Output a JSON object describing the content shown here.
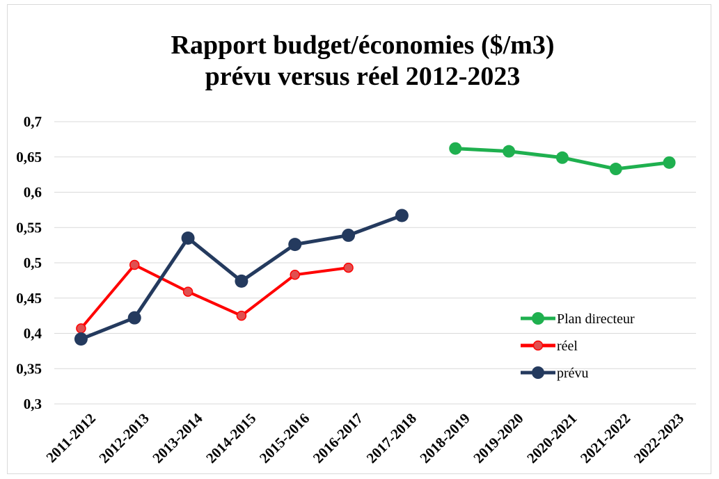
{
  "chart_data": {
    "type": "line",
    "title": [
      "Rapport budget/économies ($/m3)",
      "prévu versus réel 2012-2023"
    ],
    "xlabel": "",
    "ylabel": "",
    "categories": [
      "2011-2012",
      "2012-2013",
      "2013-2014",
      "2014-2015",
      "2015-2016",
      "2016-2017",
      "2017-2018",
      "2018-2019",
      "2019-2020",
      "2020-2021",
      "2021-2022",
      "2022-2023"
    ],
    "ylim": [
      0.3,
      0.7
    ],
    "yticks": [
      "0,3",
      "0,35",
      "0,4",
      "0,45",
      "0,5",
      "0,55",
      "0,6",
      "0,65",
      "0,7"
    ],
    "grid": true,
    "legend_position": "right",
    "series": [
      {
        "name": "Plan directeur",
        "color": "#1fb04f",
        "values": [
          null,
          null,
          null,
          null,
          null,
          null,
          null,
          0.662,
          0.658,
          0.649,
          0.633,
          0.642
        ]
      },
      {
        "name": "réel",
        "color": "#ff0000",
        "marker_color": "#e05050",
        "values": [
          0.407,
          0.497,
          0.459,
          0.425,
          0.483,
          0.493,
          null,
          null,
          null,
          null,
          null,
          null
        ]
      },
      {
        "name": "prévu",
        "color": "#243a5e",
        "values": [
          0.392,
          0.422,
          0.535,
          0.474,
          0.526,
          0.539,
          0.567,
          null,
          null,
          null,
          null,
          null
        ]
      }
    ]
  }
}
